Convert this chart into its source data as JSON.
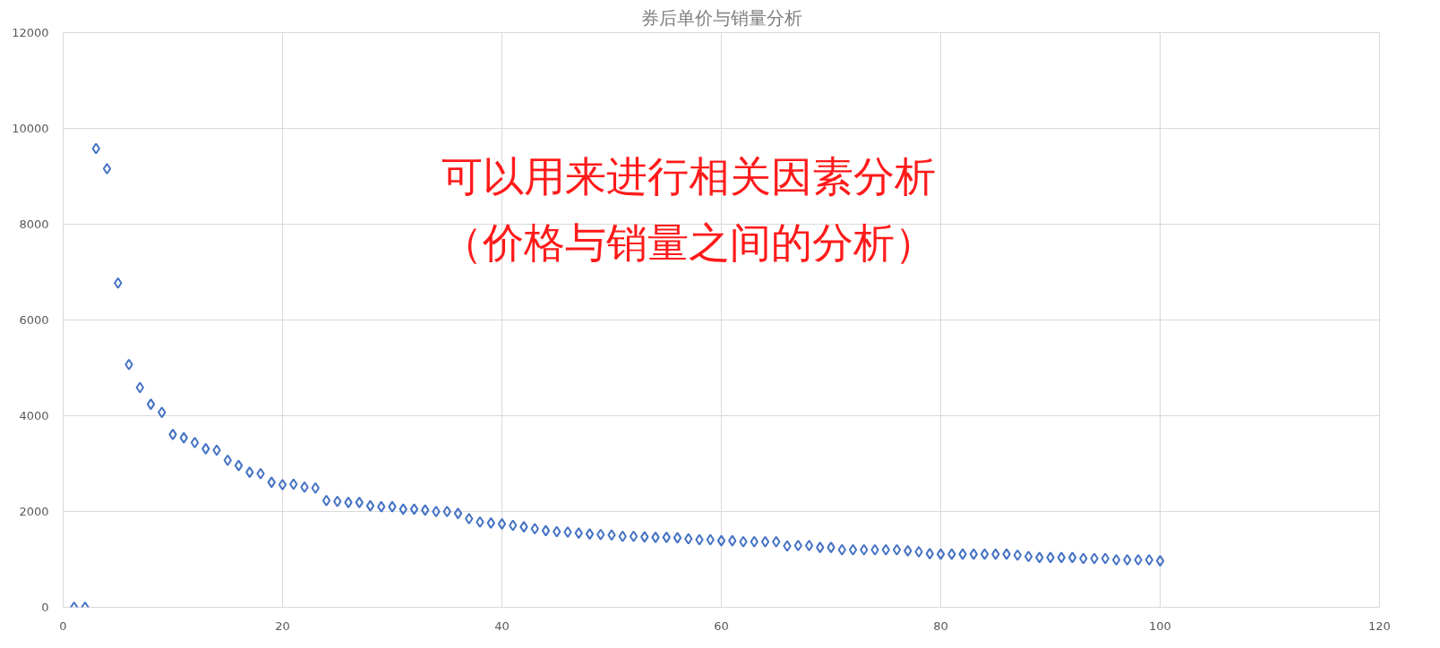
{
  "chart_data": {
    "type": "scatter",
    "title": "券后单价与销量分析",
    "x": [
      1,
      2,
      3,
      4,
      5,
      6,
      7,
      8,
      9,
      10,
      11,
      12,
      13,
      14,
      15,
      16,
      17,
      18,
      19,
      20,
      21,
      22,
      23,
      24,
      25,
      26,
      27,
      28,
      29,
      30,
      31,
      32,
      33,
      34,
      35,
      36,
      37,
      38,
      39,
      40,
      41,
      42,
      43,
      44,
      45,
      46,
      47,
      48,
      49,
      50,
      51,
      52,
      53,
      54,
      55,
      56,
      57,
      58,
      59,
      60,
      61,
      62,
      63,
      64,
      65,
      66,
      67,
      68,
      69,
      70,
      71,
      72,
      73,
      74,
      75,
      76,
      77,
      78,
      79,
      80,
      81,
      82,
      83,
      84,
      85,
      86,
      87,
      88,
      89,
      90,
      91,
      92,
      93,
      94,
      95,
      96,
      97,
      98,
      99,
      100
    ],
    "series": [
      {
        "color": "#4472c4",
        "values": [
          0,
          0,
          9580,
          9160,
          6770,
          5070,
          4590,
          4240,
          4070,
          3610,
          3540,
          3440,
          3310,
          3280,
          3070,
          2960,
          2820,
          2790,
          2610,
          2560,
          2570,
          2510,
          2490,
          2230,
          2210,
          2190,
          2190,
          2120,
          2100,
          2100,
          2050,
          2050,
          2030,
          2000,
          2000,
          1960,
          1850,
          1780,
          1760,
          1740,
          1710,
          1680,
          1640,
          1600,
          1580,
          1570,
          1550,
          1530,
          1520,
          1510,
          1480,
          1480,
          1470,
          1460,
          1460,
          1450,
          1430,
          1410,
          1410,
          1390,
          1390,
          1370,
          1370,
          1370,
          1370,
          1280,
          1290,
          1290,
          1250,
          1250,
          1200,
          1200,
          1200,
          1200,
          1200,
          1200,
          1180,
          1160,
          1120,
          1110,
          1110,
          1110,
          1110,
          1110,
          1110,
          1110,
          1090,
          1060,
          1040,
          1040,
          1040,
          1040,
          1020,
          1020,
          1020,
          990,
          990,
          990,
          990,
          970
        ]
      }
    ],
    "marker": "diamond",
    "xlim": [
      0,
      120
    ],
    "xticks": [
      0,
      20,
      40,
      60,
      80,
      100,
      120
    ],
    "ylim": [
      0,
      12000
    ],
    "yticks": [
      0,
      2000,
      4000,
      6000,
      8000,
      10000,
      12000
    ],
    "grid": true,
    "annotations": [
      "可以用来进行相关因素分析",
      "（价格与销量之间的分析）"
    ]
  }
}
